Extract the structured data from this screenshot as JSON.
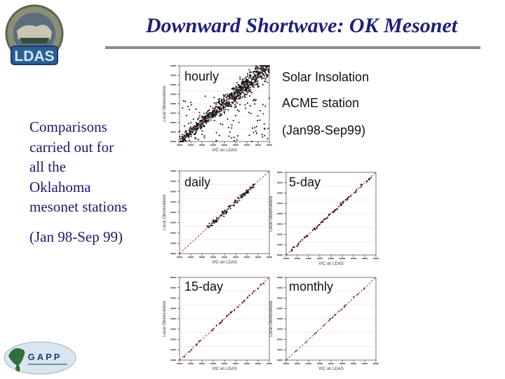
{
  "slide": {
    "title": "Downward Shortwave: OK Mesonet",
    "left_text_lines": [
      "Comparisons",
      "carried out for",
      "all the",
      "Oklahoma",
      "mesonet stations"
    ],
    "left_period": "(Jan 98-Sep 99)",
    "logo_ldas": "LDAS",
    "logo_gapp": "GAPP",
    "right_text": {
      "line1": "Solar Insolation",
      "line2": "ACME station",
      "line3": "(Jan98-Sep99)"
    }
  },
  "panels": [
    {
      "label": "hourly",
      "xlabel": "VIC on LDAS",
      "ylabel": "Local Observations"
    },
    {
      "label": "daily",
      "xlabel": "VIC on LDAS",
      "ylabel": "Local Observations"
    },
    {
      "label": "5-day",
      "xlabel": "VIC on LDAS",
      "ylabel": "Local Observations"
    },
    {
      "label": "15-day",
      "xlabel": "VIC on LDAS",
      "ylabel": "Local Observations"
    },
    {
      "label": "monthly",
      "xlabel": "VIC on LDAS",
      "ylabel": "Local Observations"
    }
  ],
  "colors": {
    "title": "#1f1f7a",
    "body_text": "#1a1a6e",
    "fit_line": "#cc2222",
    "points": "#111111"
  }
}
